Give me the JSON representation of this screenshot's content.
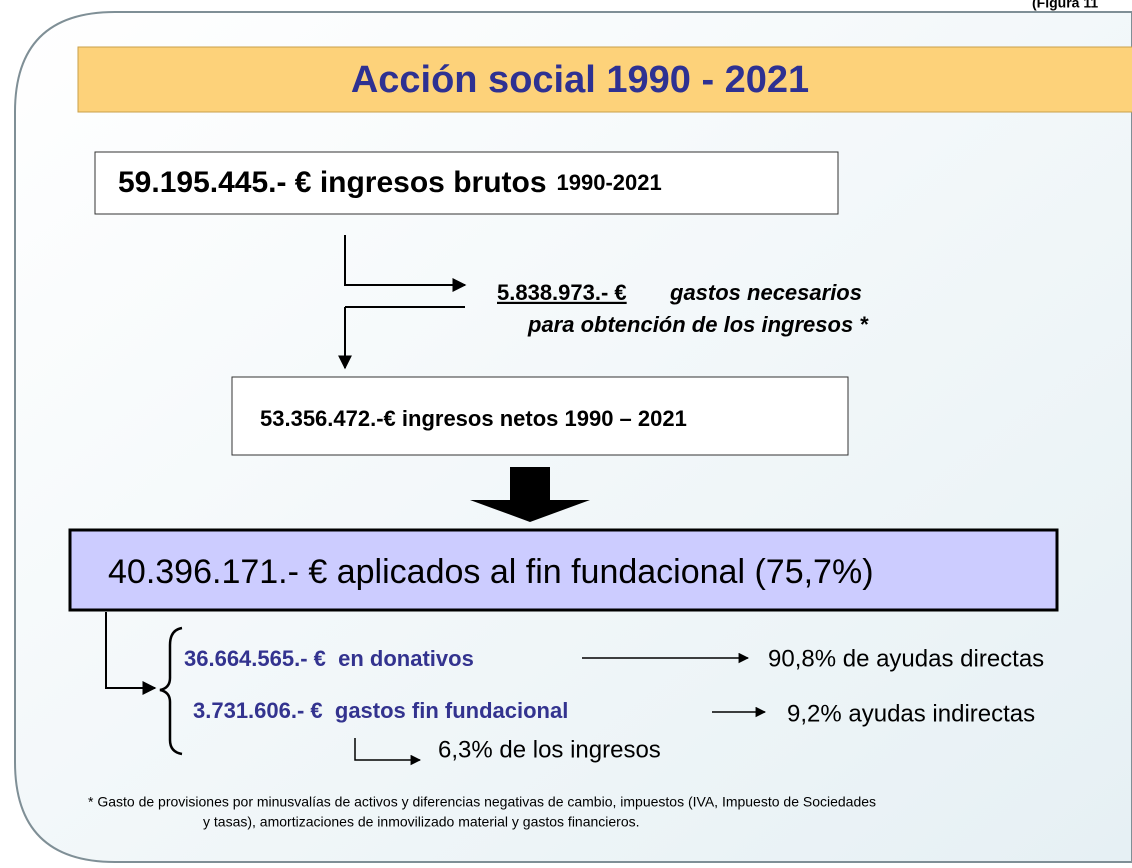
{
  "figure_label": "(Figura 11",
  "title": "Acción social 1990 - 2021",
  "gross": {
    "amount": "59.195.445.- € ingresos brutos",
    "period": "1990-2021"
  },
  "expenses": {
    "amount": "5.838.973.- €",
    "line1": "gastos necesarios",
    "line2": "para obtención de los ingresos *"
  },
  "net": "53.356.472.-€ ingresos netos 1990 – 2021",
  "applied": "40.396.171.- € aplicados al fin fundacional (75,7%)",
  "breakdown": [
    {
      "amount": "36.664.565.- €  en donativos",
      "result": "90,8% de ayudas directas"
    },
    {
      "amount": "3.731.606.- €  gastos fin fundacional",
      "result": "9,2% ayudas indirectas"
    }
  ],
  "income_share": "6,3% de los ingresos",
  "footnote": [
    "* Gasto de provisiones por minusvalías de activos y diferencias negativas de cambio, impuestos (IVA, Impuesto de Sociedades",
    "y tasas), amortizaciones de inmovilizado material y gastos financieros."
  ]
}
